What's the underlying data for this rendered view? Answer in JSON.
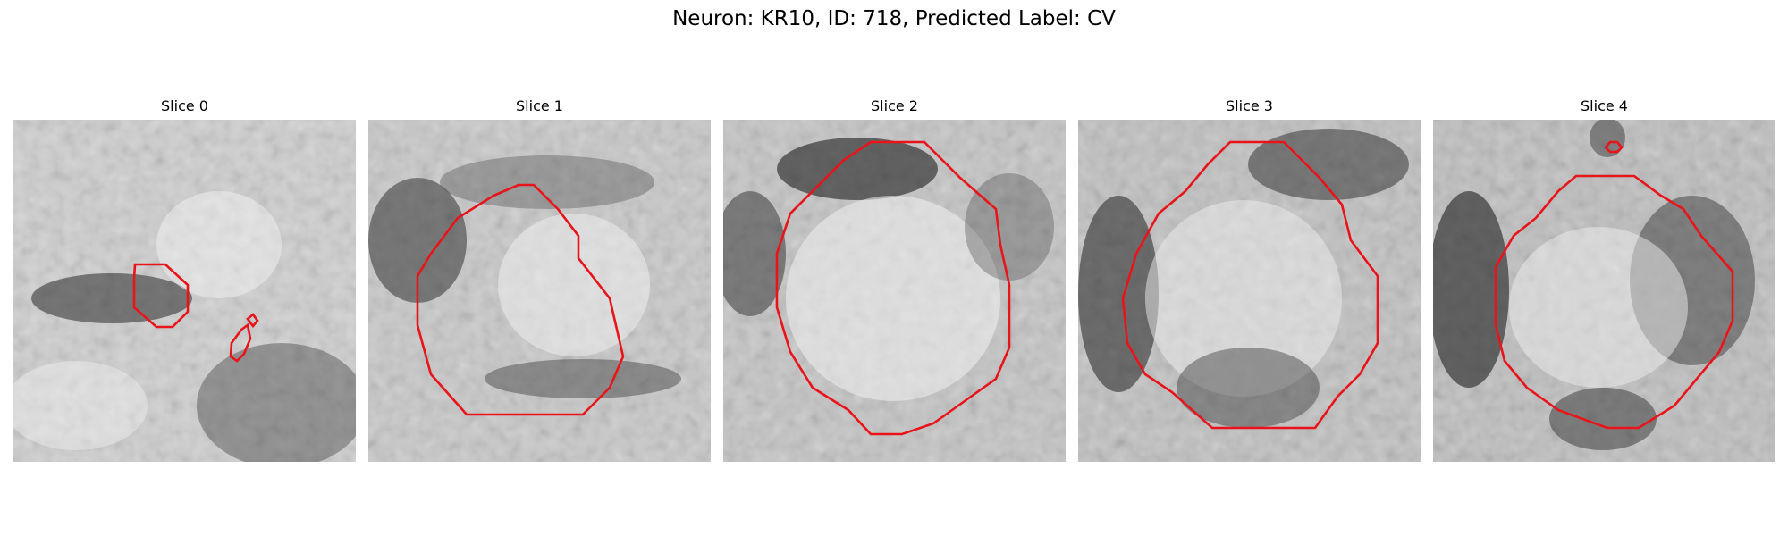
{
  "figure": {
    "title": "Neuron: KR10, ID: 718, Predicted Label: CV"
  },
  "panels": [
    {
      "title": "Slice 0"
    },
    {
      "title": "Slice 1"
    },
    {
      "title": "Slice 2"
    },
    {
      "title": "Slice 3"
    },
    {
      "title": "Slice 4"
    }
  ],
  "colors": {
    "contour": "#e8141a",
    "background": "#ffffff"
  }
}
